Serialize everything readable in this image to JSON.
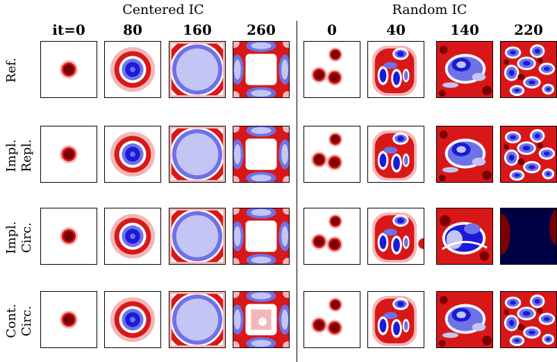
{
  "groups": {
    "centered": "Centered IC",
    "random": "Random IC"
  },
  "columns": {
    "centered": [
      "it=0",
      "80",
      "160",
      "260"
    ],
    "random": [
      "0",
      "40",
      "140",
      "220"
    ]
  },
  "rows": [
    {
      "line1": "Ref.",
      "line2": ""
    },
    {
      "line1": "Impl.",
      "line2": "Repl."
    },
    {
      "line1": "Impl.",
      "line2": "Circ."
    },
    {
      "line1": "Cont.",
      "line2": "Circ."
    }
  ],
  "colors": {
    "dark_red": "#7a0000",
    "red": "#d81818",
    "light_red": "#f4b7b7",
    "white": "#ffffff",
    "light_blue": "#c3c6f4",
    "blue": "#6f72e6",
    "dark_blue": "#1a1ad8",
    "navy": "#000045"
  }
}
